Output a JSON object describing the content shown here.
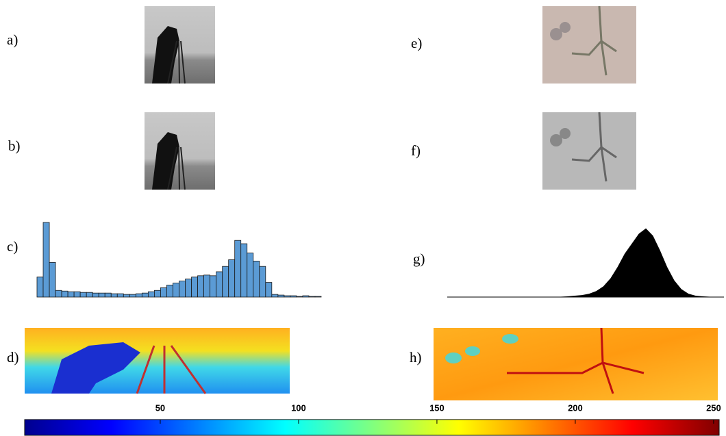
{
  "panel_labels": [
    "a)",
    "b)",
    "c)",
    "d)",
    "e)",
    "f)",
    "g)",
    "h)"
  ],
  "chart_data": [
    {
      "type": "bar",
      "color": "#5b9bd5",
      "ylim": [
        0,
        115
      ],
      "values": [
        30,
        112,
        52,
        10,
        9,
        8,
        8,
        7,
        7,
        6,
        6,
        6,
        5,
        5,
        4,
        4,
        5,
        6,
        8,
        10,
        14,
        18,
        21,
        24,
        27,
        30,
        32,
        33,
        32,
        38,
        46,
        56,
        85,
        80,
        66,
        54,
        46,
        22,
        4,
        3,
        2,
        2,
        1,
        2,
        1,
        1
      ]
    },
    {
      "type": "area",
      "color": "#000000",
      "ylim": [
        0,
        115
      ],
      "values": [
        0.5,
        0.5,
        0.5,
        0.5,
        0.5,
        0.5,
        0.5,
        0.5,
        0.5,
        0.5,
        0.5,
        0.5,
        0.5,
        0.5,
        0.5,
        0.5,
        0.5,
        1,
        2,
        3,
        5,
        9,
        16,
        28,
        45,
        65,
        80,
        95,
        103,
        92,
        70,
        45,
        25,
        12,
        5,
        2,
        1,
        0.5,
        0.5,
        0.5
      ]
    },
    {
      "type": "colorbar",
      "xlim": [
        1,
        252
      ],
      "xticks": [
        50,
        100,
        150,
        200,
        250
      ]
    }
  ]
}
